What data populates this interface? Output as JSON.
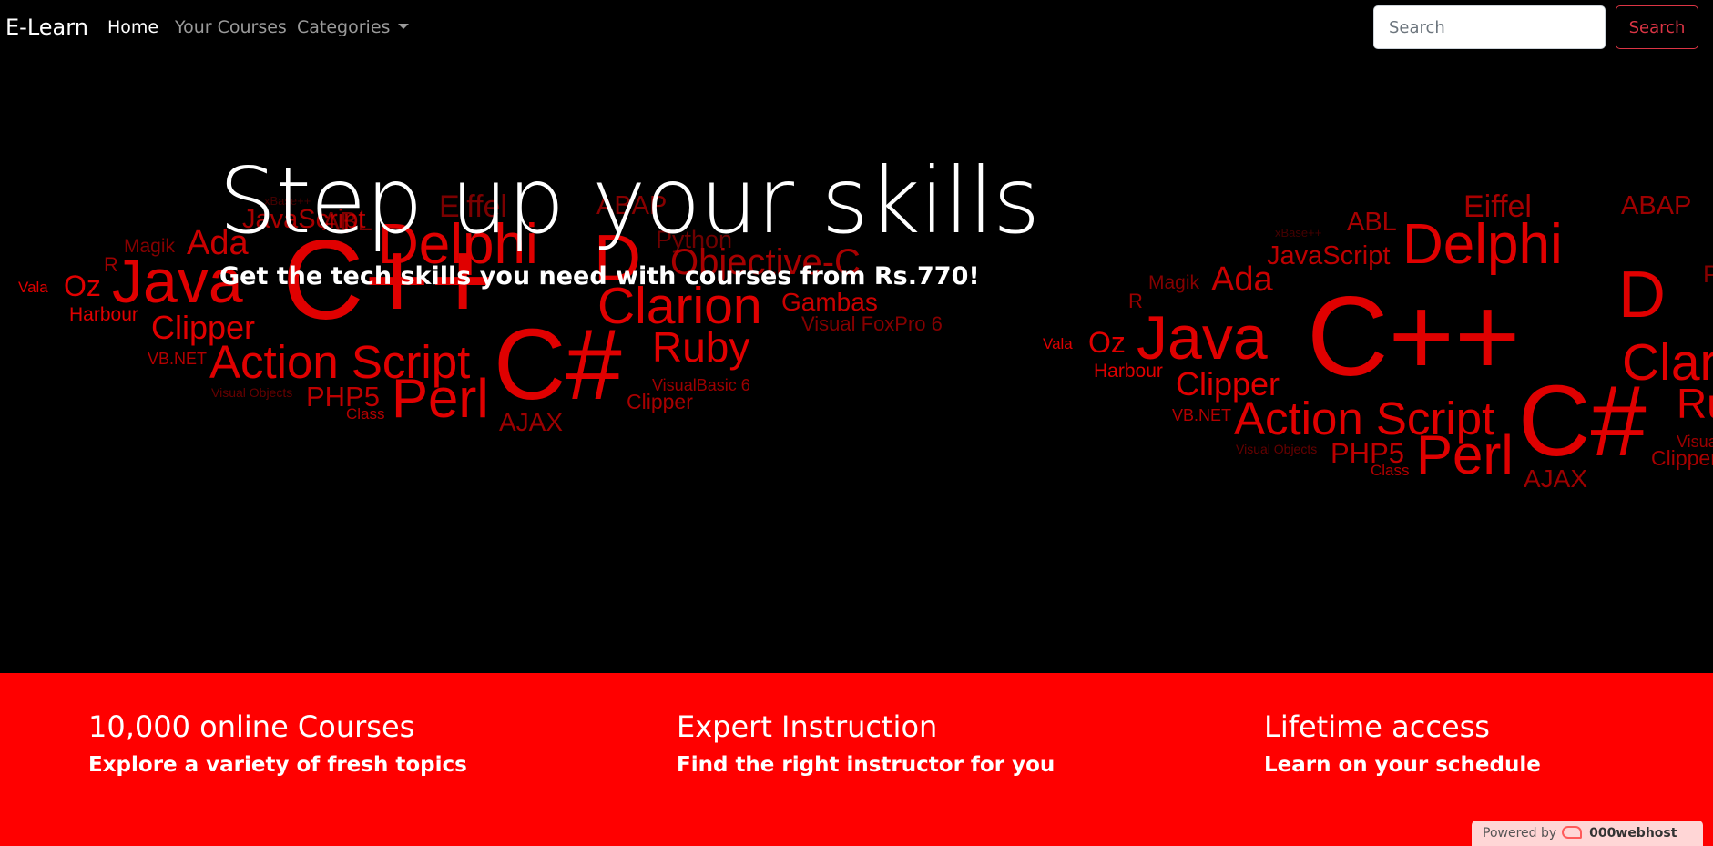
{
  "nav": {
    "brand": "E-Learn",
    "links": [
      "Home",
      "Your Courses",
      "Categories"
    ],
    "search_placeholder": "Search",
    "search_button": "Search"
  },
  "hero": {
    "title": "Step up your skills",
    "subtitle": "Get the tech skills you need with courses from Rs.770!",
    "cloud_words": [
      "Eiffel",
      "ABL",
      "xBase++",
      "Delphi",
      "ABAP",
      "JavaScript",
      "Python",
      "Magik",
      "Ada",
      "D",
      "R",
      "Objective-C",
      "Vala",
      "Oz",
      "Java",
      "C++",
      "Clarion",
      "Gambas",
      "Harbour",
      "Clipper",
      "Visual FoxPro 6",
      "VB.NET",
      "Action Script",
      "C#",
      "Ruby",
      "Visual Objects",
      "PHP5",
      "Perl",
      "VisualBasic 6",
      "Clipper",
      "Class",
      "AJAX"
    ]
  },
  "features": [
    {
      "title": "10,000 online Courses",
      "text": "Explore a variety of fresh topics"
    },
    {
      "title": "Expert Instruction",
      "text": "Find the right instructor for you"
    },
    {
      "title": "Lifetime access",
      "text": "Learn on your schedule"
    }
  ],
  "footer_badge": {
    "label": "Powered by",
    "host": "000webhost"
  },
  "colors": {
    "accent": "#ff0000",
    "cloud_red": "#e00000",
    "button_red": "#dc3545"
  }
}
